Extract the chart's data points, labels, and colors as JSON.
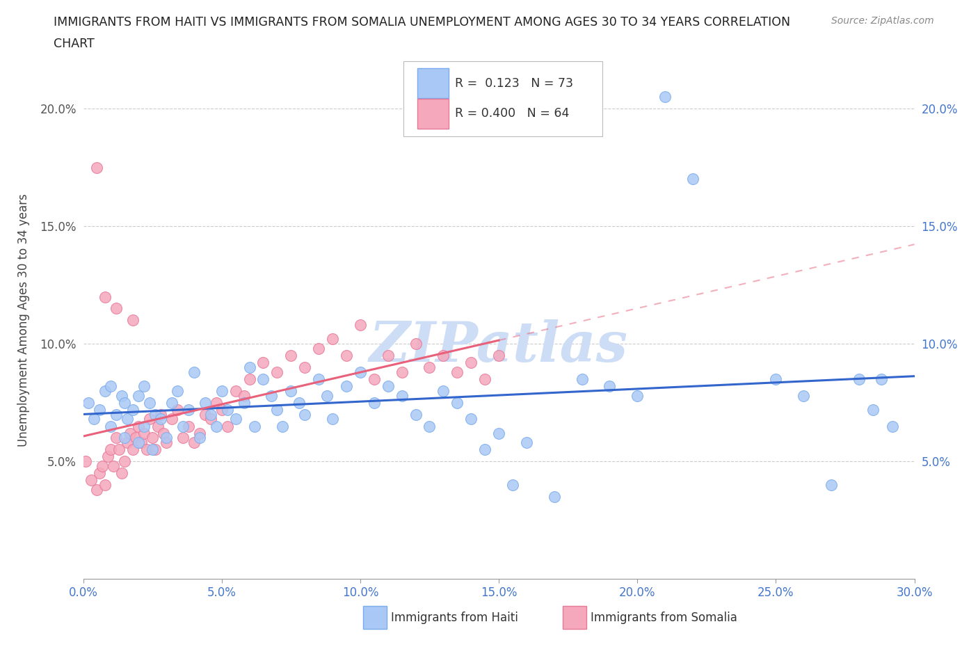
{
  "title_line1": "IMMIGRANTS FROM HAITI VS IMMIGRANTS FROM SOMALIA UNEMPLOYMENT AMONG AGES 30 TO 34 YEARS CORRELATION",
  "title_line2": "CHART",
  "source_text": "Source: ZipAtlas.com",
  "ylabel": "Unemployment Among Ages 30 to 34 years",
  "xlim": [
    0.0,
    0.3
  ],
  "ylim": [
    0.0,
    0.22
  ],
  "xtick_labels": [
    "0.0%",
    "5.0%",
    "10.0%",
    "15.0%",
    "20.0%",
    "25.0%",
    "30.0%"
  ],
  "xtick_values": [
    0.0,
    0.05,
    0.1,
    0.15,
    0.2,
    0.25,
    0.3
  ],
  "ytick_labels_left": [
    "",
    "5.0%",
    "10.0%",
    "15.0%",
    "20.0%"
  ],
  "ytick_labels_right": [
    "",
    "5.0%",
    "10.0%",
    "15.0%",
    "20.0%"
  ],
  "ytick_values": [
    0.0,
    0.05,
    0.1,
    0.15,
    0.2
  ],
  "haiti_color": "#aac8f5",
  "somalia_color": "#f5a8bc",
  "haiti_edge_color": "#7aacee",
  "somalia_edge_color": "#e87898",
  "haiti_line_color": "#3366cc",
  "somalia_line_color": "#e8607a",
  "haiti_R": 0.123,
  "haiti_N": 73,
  "somalia_R": 0.4,
  "somalia_N": 64,
  "legend_label_haiti": "Immigrants from Haiti",
  "legend_label_somalia": "Immigrants from Somalia",
  "watermark": "ZIPatlas",
  "watermark_color": "#ccddf5",
  "haiti_x": [
    0.002,
    0.004,
    0.006,
    0.008,
    0.01,
    0.01,
    0.012,
    0.014,
    0.015,
    0.015,
    0.016,
    0.018,
    0.02,
    0.02,
    0.022,
    0.022,
    0.024,
    0.025,
    0.026,
    0.028,
    0.03,
    0.032,
    0.034,
    0.036,
    0.038,
    0.04,
    0.042,
    0.044,
    0.046,
    0.048,
    0.05,
    0.052,
    0.055,
    0.058,
    0.06,
    0.062,
    0.065,
    0.068,
    0.07,
    0.072,
    0.075,
    0.078,
    0.08,
    0.085,
    0.088,
    0.09,
    0.095,
    0.1,
    0.105,
    0.11,
    0.115,
    0.12,
    0.125,
    0.13,
    0.135,
    0.14,
    0.145,
    0.15,
    0.155,
    0.16,
    0.17,
    0.18,
    0.19,
    0.2,
    0.21,
    0.22,
    0.25,
    0.26,
    0.27,
    0.28,
    0.285,
    0.288,
    0.292
  ],
  "haiti_y": [
    0.075,
    0.068,
    0.072,
    0.08,
    0.065,
    0.082,
    0.07,
    0.078,
    0.06,
    0.075,
    0.068,
    0.072,
    0.078,
    0.058,
    0.065,
    0.082,
    0.075,
    0.055,
    0.07,
    0.068,
    0.06,
    0.075,
    0.08,
    0.065,
    0.072,
    0.088,
    0.06,
    0.075,
    0.07,
    0.065,
    0.08,
    0.072,
    0.068,
    0.075,
    0.09,
    0.065,
    0.085,
    0.078,
    0.072,
    0.065,
    0.08,
    0.075,
    0.07,
    0.085,
    0.078,
    0.068,
    0.082,
    0.088,
    0.075,
    0.082,
    0.078,
    0.07,
    0.065,
    0.08,
    0.075,
    0.068,
    0.055,
    0.062,
    0.04,
    0.058,
    0.035,
    0.085,
    0.082,
    0.078,
    0.205,
    0.17,
    0.085,
    0.078,
    0.04,
    0.085,
    0.072,
    0.085,
    0.065
  ],
  "somalia_x": [
    0.001,
    0.003,
    0.005,
    0.006,
    0.007,
    0.008,
    0.009,
    0.01,
    0.011,
    0.012,
    0.013,
    0.014,
    0.015,
    0.016,
    0.017,
    0.018,
    0.019,
    0.02,
    0.021,
    0.022,
    0.023,
    0.024,
    0.025,
    0.026,
    0.027,
    0.028,
    0.029,
    0.03,
    0.032,
    0.034,
    0.036,
    0.038,
    0.04,
    0.042,
    0.044,
    0.046,
    0.048,
    0.05,
    0.052,
    0.055,
    0.058,
    0.06,
    0.065,
    0.07,
    0.075,
    0.08,
    0.085,
    0.09,
    0.095,
    0.1,
    0.105,
    0.11,
    0.115,
    0.12,
    0.125,
    0.13,
    0.135,
    0.14,
    0.145,
    0.15,
    0.005,
    0.008,
    0.012,
    0.018
  ],
  "somalia_y": [
    0.05,
    0.042,
    0.038,
    0.045,
    0.048,
    0.04,
    0.052,
    0.055,
    0.048,
    0.06,
    0.055,
    0.045,
    0.05,
    0.058,
    0.062,
    0.055,
    0.06,
    0.065,
    0.058,
    0.062,
    0.055,
    0.068,
    0.06,
    0.055,
    0.065,
    0.07,
    0.062,
    0.058,
    0.068,
    0.072,
    0.06,
    0.065,
    0.058,
    0.062,
    0.07,
    0.068,
    0.075,
    0.072,
    0.065,
    0.08,
    0.078,
    0.085,
    0.092,
    0.088,
    0.095,
    0.09,
    0.098,
    0.102,
    0.095,
    0.108,
    0.085,
    0.095,
    0.088,
    0.1,
    0.09,
    0.095,
    0.088,
    0.092,
    0.085,
    0.095,
    0.175,
    0.12,
    0.115,
    0.11
  ]
}
